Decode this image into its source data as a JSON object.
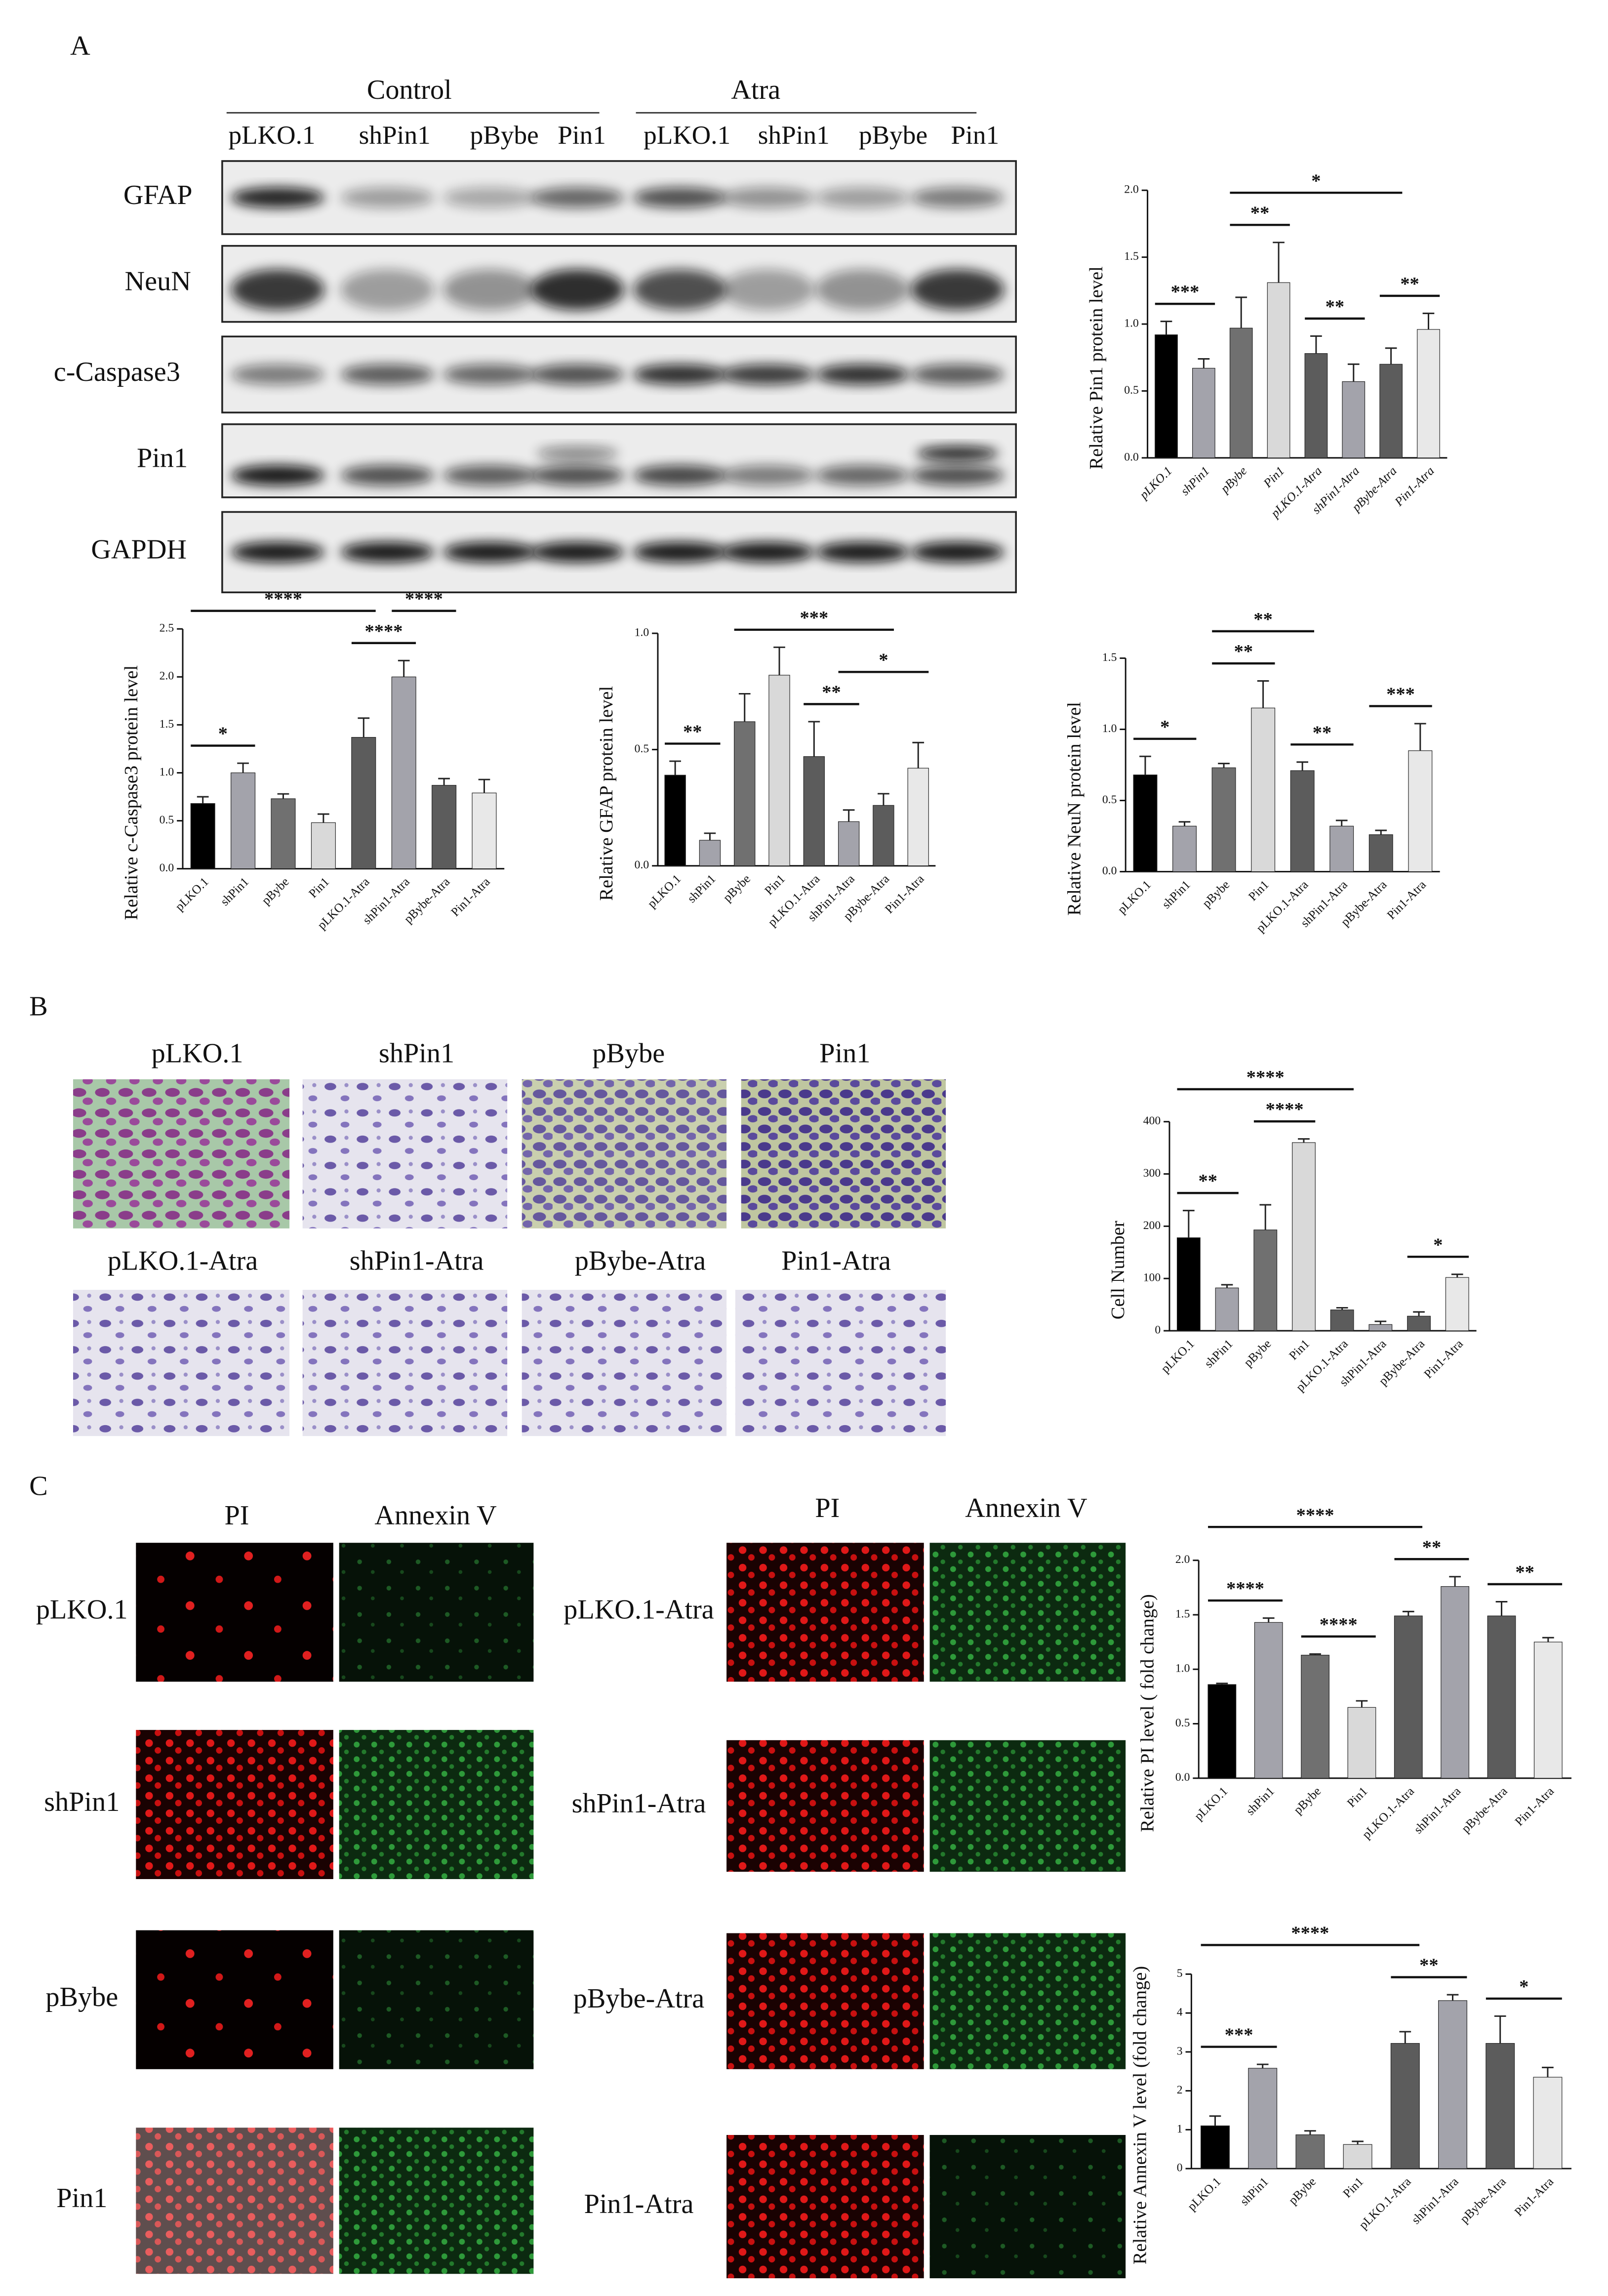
{
  "figure": {
    "panel_labels": [
      "A",
      "B",
      "C"
    ],
    "blot": {
      "groups": [
        "Control",
        "Atra"
      ],
      "lanes": [
        "pLKO.1",
        "shPin1",
        "pBybe",
        "Pin1",
        "pLKO.1",
        "shPin1",
        "pBybe",
        "Pin1"
      ],
      "proteins": [
        "GFAP",
        "NeuN",
        "c-Caspase3",
        "Pin1",
        "GAPDH"
      ]
    },
    "transwell": {
      "labels": [
        "pLKO.1",
        "shPin1",
        "pBybe",
        "Pin1",
        "pLKO.1-Atra",
        "shPin1-Atra",
        "pBybe-Atra",
        "Pin1-Atra"
      ]
    },
    "apoptosis": {
      "channels": [
        "PI",
        "Annexin V"
      ],
      "left_rows": [
        "pLKO.1",
        "shPin1",
        "pBybe",
        "Pin1"
      ],
      "right_rows": [
        "pLKO.1-Atra",
        "shPin1-Atra",
        "pBybe-Atra",
        "Pin1-Atra"
      ]
    }
  },
  "chart_data": [
    {
      "type": "bar",
      "ylabel": "Relative Pin1 protein level",
      "italic_labels": true,
      "categories": [
        "pLKO.1",
        "shPin1",
        "pBybe",
        "Pin1",
        "pLKO.1-Atra",
        "shPin1-Atra",
        "pBybe-Atra",
        "Pin1-Atra"
      ],
      "values": [
        0.92,
        0.67,
        0.97,
        1.31,
        0.78,
        0.57,
        0.7,
        0.96
      ],
      "errors": [
        0.1,
        0.07,
        0.23,
        0.3,
        0.13,
        0.13,
        0.12,
        0.12
      ],
      "colors": [
        "#000000",
        "#a3a3ab",
        "#707070",
        "#d9d9d9",
        "#5c5c5c",
        "#a3a3ab",
        "#5c5c5c",
        "#e8e8e8"
      ],
      "ylim": [
        0,
        2
      ],
      "yticks": [
        {
          "value": 0,
          "label": "0.0"
        },
        0.5,
        {
          "value": 1,
          "label": "1.0"
        },
        1.5,
        {
          "value": 2,
          "label": "2.0"
        }
      ],
      "annotations": [
        {
          "text": "***",
          "from": 0,
          "to": 1
        },
        {
          "text": "**",
          "from": 2,
          "to": 3
        },
        {
          "text": "*",
          "from": 2,
          "to": 6
        },
        {
          "text": "**",
          "from": 4,
          "to": 5
        },
        {
          "text": "**",
          "from": 6,
          "to": 7
        }
      ]
    },
    {
      "type": "bar",
      "ylabel": "Relative c-Caspase3 protein level",
      "italic_labels": false,
      "categories": [
        "pLKO.1",
        "shPin1",
        "pBybe",
        "Pin1",
        "pLKO.1-Atra",
        "shPin1-Atra",
        "pBybe-Atra",
        "Pin1-Atra"
      ],
      "values": [
        0.68,
        1.0,
        0.73,
        0.48,
        1.37,
        2.0,
        0.87,
        0.79
      ],
      "errors": [
        0.07,
        0.1,
        0.05,
        0.09,
        0.2,
        0.17,
        0.07,
        0.14
      ],
      "colors": [
        "#000000",
        "#a3a3ab",
        "#707070",
        "#d9d9d9",
        "#5c5c5c",
        "#a3a3ab",
        "#5c5c5c",
        "#e8e8e8"
      ],
      "ylim": [
        0,
        2.5
      ],
      "yticks": [
        {
          "value": 0,
          "label": "0.0"
        },
        0.5,
        {
          "value": 1,
          "label": "1.0"
        },
        1.5,
        {
          "value": 2,
          "label": "2.0"
        },
        2.5
      ],
      "annotations": [
        {
          "text": "*",
          "from": 0,
          "to": 1
        },
        {
          "text": "****",
          "from": 0,
          "to": 4
        },
        {
          "text": "****",
          "from": 4,
          "to": 5
        },
        {
          "text": "****",
          "from": 5,
          "to": 6
        }
      ]
    },
    {
      "type": "bar",
      "ylabel": "Relative GFAP protein level",
      "italic_labels": false,
      "categories": [
        "pLKO.1",
        "shPin1",
        "pBybe",
        "Pin1",
        "pLKO.1-Atra",
        "shPin1-Atra",
        "pBybe-Atra",
        "Pin1-Atra"
      ],
      "values": [
        0.39,
        0.11,
        0.62,
        0.82,
        0.47,
        0.19,
        0.26,
        0.42
      ],
      "errors": [
        0.06,
        0.03,
        0.12,
        0.12,
        0.15,
        0.05,
        0.05,
        0.11
      ],
      "colors": [
        "#000000",
        "#a3a3ab",
        "#707070",
        "#d9d9d9",
        "#5c5c5c",
        "#a3a3ab",
        "#5c5c5c",
        "#e8e8e8"
      ],
      "ylim": [
        0,
        1
      ],
      "yticks": [
        {
          "value": 0,
          "label": "0.0"
        },
        0.5,
        {
          "value": 1,
          "label": "1.0"
        }
      ],
      "annotations": [
        {
          "text": "**",
          "from": 0,
          "to": 1
        },
        {
          "text": "***",
          "from": 2,
          "to": 6
        },
        {
          "text": "**",
          "from": 4,
          "to": 5
        },
        {
          "text": "*",
          "from": 5,
          "to": 7
        }
      ]
    },
    {
      "type": "bar",
      "ylabel": "Relative NeuN protein level",
      "italic_labels": false,
      "categories": [
        "pLKO.1",
        "shPin1",
        "pBybe",
        "Pin1",
        "pLKO.1-Atra",
        "shPin1-Atra",
        "pBybe-Atra",
        "Pin1-Atra"
      ],
      "values": [
        0.68,
        0.32,
        0.73,
        1.15,
        0.71,
        0.32,
        0.26,
        0.85
      ],
      "errors": [
        0.13,
        0.03,
        0.03,
        0.19,
        0.06,
        0.04,
        0.03,
        0.19
      ],
      "colors": [
        "#000000",
        "#a3a3ab",
        "#707070",
        "#d9d9d9",
        "#5c5c5c",
        "#a3a3ab",
        "#5c5c5c",
        "#e8e8e8"
      ],
      "ylim": [
        0,
        1.5
      ],
      "yticks": [
        {
          "value": 0,
          "label": "0.0"
        },
        0.5,
        {
          "value": 1,
          "label": "1.0"
        },
        1.5
      ],
      "annotations": [
        {
          "text": "*",
          "from": 0,
          "to": 1
        },
        {
          "text": "**",
          "from": 2,
          "to": 3
        },
        {
          "text": "**",
          "from": 2,
          "to": 4
        },
        {
          "text": "**",
          "from": 4,
          "to": 5
        },
        {
          "text": "***",
          "from": 6,
          "to": 7
        }
      ]
    },
    {
      "type": "bar",
      "ylabel": "Cell Number",
      "italic_labels": false,
      "categories": [
        "pLKO.1",
        "shPin1",
        "pBybe",
        "Pin1",
        "pLKO.1-Atra",
        "shPin1-Atra",
        "pBybe-Atra",
        "Pin1-Atra"
      ],
      "values": [
        178,
        82,
        193,
        360,
        40,
        12,
        28,
        102
      ],
      "errors": [
        52,
        6,
        48,
        7,
        4,
        6,
        8,
        6
      ],
      "colors": [
        "#000000",
        "#a3a3ab",
        "#707070",
        "#d9d9d9",
        "#5c5c5c",
        "#a3a3ab",
        "#5c5c5c",
        "#e8e8e8"
      ],
      "ylim": [
        0,
        400
      ],
      "yticks": [
        0,
        100,
        200,
        300,
        400
      ],
      "annotations": [
        {
          "text": "**",
          "from": 0,
          "to": 1
        },
        {
          "text": "****",
          "from": 2,
          "to": 3
        },
        {
          "text": "****",
          "from": 0,
          "to": 4
        },
        {
          "text": "*",
          "from": 6,
          "to": 7
        }
      ]
    },
    {
      "type": "bar",
      "ylabel": "Relative PI level ( fold change)",
      "italic_labels": false,
      "categories": [
        "pLKO.1",
        "shPin1",
        "pBybe",
        "Pin1",
        "pLKO.1-Atra",
        "shPin1-Atra",
        "pBybe-Atra",
        "Pin1-Atra"
      ],
      "values": [
        0.86,
        1.43,
        1.13,
        0.65,
        1.49,
        1.76,
        1.49,
        1.25
      ],
      "errors": [
        0.01,
        0.04,
        0.01,
        0.06,
        0.04,
        0.09,
        0.13,
        0.04
      ],
      "colors": [
        "#000000",
        "#a3a3ab",
        "#707070",
        "#d9d9d9",
        "#5c5c5c",
        "#a3a3ab",
        "#5c5c5c",
        "#e8e8e8"
      ],
      "ylim": [
        0,
        2
      ],
      "yticks": [
        {
          "value": 0,
          "label": "0.0"
        },
        0.5,
        {
          "value": 1,
          "label": "1.0"
        },
        1.5,
        {
          "value": 2,
          "label": "2.0"
        }
      ],
      "annotations": [
        {
          "text": "****",
          "from": 0,
          "to": 1
        },
        {
          "text": "****",
          "from": 2,
          "to": 3
        },
        {
          "text": "****",
          "from": 0,
          "to": 4
        },
        {
          "text": "**",
          "from": 4,
          "to": 5
        },
        {
          "text": "**",
          "from": 6,
          "to": 7
        }
      ]
    },
    {
      "type": "bar",
      "ylabel": "Relative Annexin V level (fold change)",
      "italic_labels": false,
      "categories": [
        "pLKO.1",
        "shPin1",
        "pBybe",
        "Pin1",
        "pLKO.1-Atra",
        "shPin1-Atra",
        "pBybe-Atra",
        "Pin1-Atra"
      ],
      "values": [
        1.1,
        2.58,
        0.87,
        0.62,
        3.22,
        4.32,
        3.22,
        2.35
      ],
      "errors": [
        0.25,
        0.1,
        0.1,
        0.08,
        0.3,
        0.15,
        0.7,
        0.25
      ],
      "colors": [
        "#000000",
        "#a3a3ab",
        "#707070",
        "#d9d9d9",
        "#5c5c5c",
        "#a3a3ab",
        "#5c5c5c",
        "#e8e8e8"
      ],
      "ylim": [
        0,
        5
      ],
      "yticks": [
        0,
        1,
        2,
        3,
        4,
        5
      ],
      "annotations": [
        {
          "text": "***",
          "from": 0,
          "to": 1
        },
        {
          "text": "****",
          "from": 0,
          "to": 4
        },
        {
          "text": "**",
          "from": 4,
          "to": 5
        },
        {
          "text": "*",
          "from": 6,
          "to": 7
        }
      ]
    }
  ]
}
